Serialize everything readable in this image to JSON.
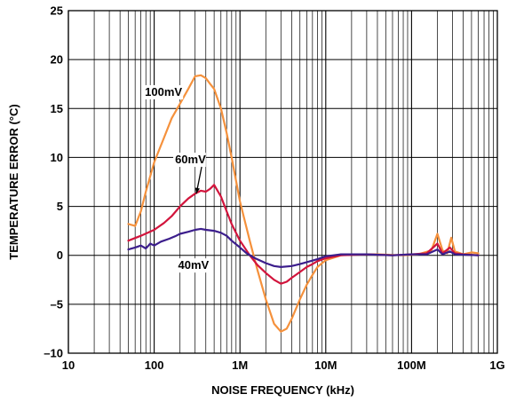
{
  "chart_data": {
    "type": "line",
    "xlabel": "NOISE FREQUENCY (kHz)",
    "ylabel": "TEMPERATURE ERROR (°C)",
    "x_scale": "log",
    "xlim": [
      10,
      1000000
    ],
    "ylim": [
      -10,
      25
    ],
    "x_ticks": [
      {
        "value": 10,
        "label": "10"
      },
      {
        "value": 100,
        "label": "100"
      },
      {
        "value": 1000,
        "label": "1M"
      },
      {
        "value": 10000,
        "label": "10M"
      },
      {
        "value": 100000,
        "label": "100M"
      },
      {
        "value": 1000000,
        "label": "1G"
      }
    ],
    "y_ticks": [
      {
        "value": 25,
        "label": "25"
      },
      {
        "value": 20,
        "label": "20"
      },
      {
        "value": 15,
        "label": "15"
      },
      {
        "value": 10,
        "label": "10"
      },
      {
        "value": 5,
        "label": "5"
      },
      {
        "value": 0,
        "label": "0"
      },
      {
        "value": -5,
        "label": "–5"
      },
      {
        "value": -10,
        "label": "–10"
      }
    ],
    "grid": true,
    "series": [
      {
        "name": "100mV",
        "color": "#f5913c",
        "points": [
          [
            50,
            3.2
          ],
          [
            60,
            3.0
          ],
          [
            70,
            4.5
          ],
          [
            80,
            6.5
          ],
          [
            100,
            9.5
          ],
          [
            130,
            12.0
          ],
          [
            160,
            14.0
          ],
          [
            200,
            15.5
          ],
          [
            250,
            17.0
          ],
          [
            300,
            18.3
          ],
          [
            350,
            18.4
          ],
          [
            400,
            18.1
          ],
          [
            450,
            17.5
          ],
          [
            500,
            17.0
          ],
          [
            600,
            15.0
          ],
          [
            700,
            12.5
          ],
          [
            800,
            10.0
          ],
          [
            1000,
            5.5
          ],
          [
            1300,
            1.5
          ],
          [
            1600,
            -1.5
          ],
          [
            2000,
            -4.5
          ],
          [
            2500,
            -7.0
          ],
          [
            3000,
            -7.8
          ],
          [
            3500,
            -7.5
          ],
          [
            4000,
            -6.5
          ],
          [
            5000,
            -4.5
          ],
          [
            6000,
            -3.0
          ],
          [
            7000,
            -2.0
          ],
          [
            8000,
            -1.2
          ],
          [
            10000,
            -0.5
          ],
          [
            15000,
            0.0
          ],
          [
            20000,
            0.1
          ],
          [
            40000,
            0.1
          ],
          [
            80000,
            0.0
          ],
          [
            120000,
            0.1
          ],
          [
            170000,
            0.5
          ],
          [
            200000,
            2.2
          ],
          [
            230000,
            0.5
          ],
          [
            260000,
            0.2
          ],
          [
            290000,
            1.8
          ],
          [
            320000,
            0.4
          ],
          [
            400000,
            0.1
          ],
          [
            500000,
            0.3
          ],
          [
            600000,
            0.2
          ]
        ]
      },
      {
        "name": "60mV",
        "color": "#d2143c",
        "points": [
          [
            50,
            1.5
          ],
          [
            70,
            2.0
          ],
          [
            100,
            2.6
          ],
          [
            130,
            3.3
          ],
          [
            160,
            4.0
          ],
          [
            200,
            5.0
          ],
          [
            250,
            5.8
          ],
          [
            300,
            6.3
          ],
          [
            350,
            6.6
          ],
          [
            400,
            6.5
          ],
          [
            450,
            6.8
          ],
          [
            500,
            7.2
          ],
          [
            600,
            6.0
          ],
          [
            700,
            4.5
          ],
          [
            800,
            3.2
          ],
          [
            1000,
            1.5
          ],
          [
            1300,
            0.0
          ],
          [
            1600,
            -1.0
          ],
          [
            2000,
            -1.8
          ],
          [
            2500,
            -2.5
          ],
          [
            3000,
            -2.9
          ],
          [
            3500,
            -2.7
          ],
          [
            4000,
            -2.3
          ],
          [
            5000,
            -1.7
          ],
          [
            6000,
            -1.2
          ],
          [
            7000,
            -0.9
          ],
          [
            8000,
            -0.6
          ],
          [
            10000,
            -0.3
          ],
          [
            15000,
            0.0
          ],
          [
            30000,
            0.1
          ],
          [
            60000,
            0.0
          ],
          [
            100000,
            0.1
          ],
          [
            150000,
            0.2
          ],
          [
            200000,
            1.2
          ],
          [
            230000,
            0.2
          ],
          [
            280000,
            0.8
          ],
          [
            320000,
            0.2
          ],
          [
            400000,
            0.1
          ],
          [
            600000,
            0.0
          ]
        ]
      },
      {
        "name": "40mV",
        "color": "#3c1e8c",
        "points": [
          [
            50,
            0.6
          ],
          [
            60,
            0.8
          ],
          [
            70,
            1.0
          ],
          [
            80,
            0.7
          ],
          [
            90,
            1.2
          ],
          [
            100,
            1.0
          ],
          [
            120,
            1.4
          ],
          [
            150,
            1.7
          ],
          [
            180,
            2.0
          ],
          [
            200,
            2.2
          ],
          [
            250,
            2.4
          ],
          [
            300,
            2.6
          ],
          [
            350,
            2.7
          ],
          [
            400,
            2.6
          ],
          [
            500,
            2.5
          ],
          [
            600,
            2.3
          ],
          [
            700,
            2.0
          ],
          [
            800,
            1.5
          ],
          [
            1000,
            0.8
          ],
          [
            1200,
            0.2
          ],
          [
            1500,
            -0.3
          ],
          [
            2000,
            -0.8
          ],
          [
            2500,
            -1.1
          ],
          [
            3000,
            -1.2
          ],
          [
            4000,
            -1.1
          ],
          [
            5000,
            -0.9
          ],
          [
            6000,
            -0.7
          ],
          [
            8000,
            -0.4
          ],
          [
            10000,
            -0.1
          ],
          [
            15000,
            0.1
          ],
          [
            30000,
            0.1
          ],
          [
            60000,
            0.0
          ],
          [
            100000,
            0.1
          ],
          [
            150000,
            0.1
          ],
          [
            200000,
            0.6
          ],
          [
            230000,
            0.1
          ],
          [
            280000,
            0.4
          ],
          [
            320000,
            0.1
          ],
          [
            600000,
            0.0
          ]
        ]
      }
    ],
    "annotations": [
      {
        "text": "100mV",
        "x": 78,
        "y": 16.3
      },
      {
        "text": "60mV",
        "x": 175,
        "y": 9.4
      },
      {
        "text": "40mV",
        "x": 190,
        "y": -1.4
      }
    ]
  }
}
